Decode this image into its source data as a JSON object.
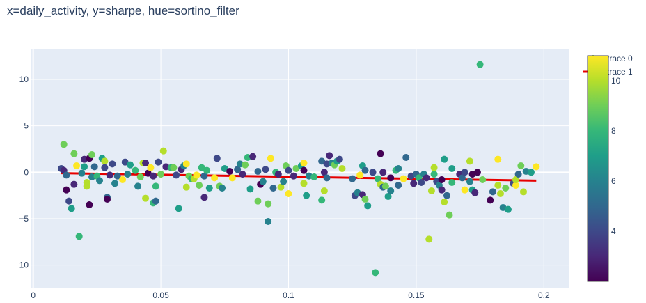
{
  "chart_data": {
    "type": "scatter",
    "title": "x=daily_activity, y=sharpe, hue=sortino_filter",
    "xlabel": "",
    "ylabel": "",
    "xlim": [
      -0.001,
      0.21
    ],
    "ylim": [
      -12.5,
      13.3
    ],
    "xticks": [
      0,
      0.05,
      0.1,
      0.15,
      0.2
    ],
    "xtick_labels": [
      "0",
      "0.05",
      "0.1",
      "0.15",
      "0.2"
    ],
    "yticks": [
      10,
      5,
      0,
      -5,
      -10
    ],
    "ytick_labels": [
      "10",
      "5",
      "0",
      "−5",
      "−10"
    ],
    "grid": true,
    "legend_position": "top-right",
    "series": [
      {
        "name": "trace 0",
        "mode": "markers",
        "colorscale": "viridis",
        "color_range": [
          2,
          11
        ],
        "points": [
          {
            "x": 0.011,
            "y": 0.4,
            "c": 4
          },
          {
            "x": 0.012,
            "y": 0.2,
            "c": 3
          },
          {
            "x": 0.012,
            "y": 3.0,
            "c": 9
          },
          {
            "x": 0.013,
            "y": -0.3,
            "c": 5
          },
          {
            "x": 0.013,
            "y": -1.9,
            "c": 2
          },
          {
            "x": 0.014,
            "y": -3.1,
            "c": 4
          },
          {
            "x": 0.015,
            "y": -3.9,
            "c": 7
          },
          {
            "x": 0.016,
            "y": 2.0,
            "c": 9
          },
          {
            "x": 0.016,
            "y": -1.3,
            "c": 3
          },
          {
            "x": 0.017,
            "y": 0.7,
            "c": 11
          },
          {
            "x": 0.018,
            "y": -6.9,
            "c": 8
          },
          {
            "x": 0.019,
            "y": -0.1,
            "c": 6
          },
          {
            "x": 0.02,
            "y": 1.4,
            "c": 3
          },
          {
            "x": 0.02,
            "y": 0.6,
            "c": 7
          },
          {
            "x": 0.021,
            "y": -1.1,
            "c": 10
          },
          {
            "x": 0.021,
            "y": -1.5,
            "c": 10
          },
          {
            "x": 0.022,
            "y": 1.5,
            "c": 2
          },
          {
            "x": 0.022,
            "y": -3.5,
            "c": 2
          },
          {
            "x": 0.023,
            "y": 1.9,
            "c": 9
          },
          {
            "x": 0.023,
            "y": -0.5,
            "c": 6
          },
          {
            "x": 0.024,
            "y": 0.6,
            "c": 5
          },
          {
            "x": 0.025,
            "y": -0.4,
            "c": 8
          },
          {
            "x": 0.026,
            "y": -0.9,
            "c": 6
          },
          {
            "x": 0.027,
            "y": 1.5,
            "c": 7
          },
          {
            "x": 0.028,
            "y": 1.2,
            "c": 10
          },
          {
            "x": 0.028,
            "y": 0.5,
            "c": 4
          },
          {
            "x": 0.029,
            "y": -2.7,
            "c": 5
          },
          {
            "x": 0.029,
            "y": -2.9,
            "c": 2
          },
          {
            "x": 0.03,
            "y": -0.3,
            "c": 3
          },
          {
            "x": 0.031,
            "y": 0.9,
            "c": 4
          },
          {
            "x": 0.032,
            "y": -1.2,
            "c": 6
          },
          {
            "x": 0.033,
            "y": -0.4,
            "c": 5
          },
          {
            "x": 0.035,
            "y": -0.8,
            "c": 11
          },
          {
            "x": 0.036,
            "y": 1.1,
            "c": 4
          },
          {
            "x": 0.037,
            "y": -0.2,
            "c": 6
          },
          {
            "x": 0.038,
            "y": 0.8,
            "c": 7
          },
          {
            "x": 0.04,
            "y": 0.2,
            "c": 8
          },
          {
            "x": 0.041,
            "y": -1.5,
            "c": 6
          },
          {
            "x": 0.042,
            "y": -0.5,
            "c": 9
          },
          {
            "x": 0.043,
            "y": 1.0,
            "c": 10
          },
          {
            "x": 0.044,
            "y": -2.8,
            "c": 10
          },
          {
            "x": 0.044,
            "y": 1.0,
            "c": 3
          },
          {
            "x": 0.045,
            "y": -0.1,
            "c": 2
          },
          {
            "x": 0.046,
            "y": 0.5,
            "c": 11
          },
          {
            "x": 0.047,
            "y": -3.3,
            "c": 8
          },
          {
            "x": 0.047,
            "y": -0.4,
            "c": 3
          },
          {
            "x": 0.048,
            "y": -1.5,
            "c": 8
          },
          {
            "x": 0.048,
            "y": -3.1,
            "c": 5
          },
          {
            "x": 0.049,
            "y": 1.1,
            "c": 4
          },
          {
            "x": 0.05,
            "y": -0.2,
            "c": 9
          },
          {
            "x": 0.051,
            "y": 2.3,
            "c": 10
          },
          {
            "x": 0.052,
            "y": 0.6,
            "c": 3
          },
          {
            "x": 0.054,
            "y": 0.5,
            "c": 8
          },
          {
            "x": 0.055,
            "y": 0.5,
            "c": 9
          },
          {
            "x": 0.056,
            "y": -0.3,
            "c": 4
          },
          {
            "x": 0.057,
            "y": -3.9,
            "c": 7
          },
          {
            "x": 0.058,
            "y": 0.3,
            "c": 3
          },
          {
            "x": 0.059,
            "y": 0.7,
            "c": 6
          },
          {
            "x": 0.06,
            "y": -1.6,
            "c": 10
          },
          {
            "x": 0.06,
            "y": 0.9,
            "c": 11
          },
          {
            "x": 0.061,
            "y": -0.4,
            "c": 9
          },
          {
            "x": 0.062,
            "y": -0.7,
            "c": 8
          },
          {
            "x": 0.063,
            "y": -0.7,
            "c": 10
          },
          {
            "x": 0.064,
            "y": -0.3,
            "c": 11
          },
          {
            "x": 0.065,
            "y": -1.4,
            "c": 9
          },
          {
            "x": 0.066,
            "y": 0.5,
            "c": 8
          },
          {
            "x": 0.067,
            "y": -2.7,
            "c": 3
          },
          {
            "x": 0.067,
            "y": -0.4,
            "c": 5
          },
          {
            "x": 0.068,
            "y": 0.2,
            "c": 8
          },
          {
            "x": 0.069,
            "y": -1.7,
            "c": 7
          },
          {
            "x": 0.071,
            "y": -0.6,
            "c": 11
          },
          {
            "x": 0.072,
            "y": 1.5,
            "c": 4
          },
          {
            "x": 0.073,
            "y": -1.5,
            "c": 9
          },
          {
            "x": 0.074,
            "y": -1.7,
            "c": 6
          },
          {
            "x": 0.075,
            "y": 0.4,
            "c": 7
          },
          {
            "x": 0.077,
            "y": 0.1,
            "c": 2
          },
          {
            "x": 0.078,
            "y": -0.6,
            "c": 11
          },
          {
            "x": 0.08,
            "y": 0.3,
            "c": 5
          },
          {
            "x": 0.081,
            "y": 0.9,
            "c": 6
          },
          {
            "x": 0.082,
            "y": -0.2,
            "c": 3
          },
          {
            "x": 0.083,
            "y": 0.8,
            "c": 9
          },
          {
            "x": 0.084,
            "y": 1.6,
            "c": 8
          },
          {
            "x": 0.085,
            "y": -1.8,
            "c": 7
          },
          {
            "x": 0.086,
            "y": 1.7,
            "c": 3
          },
          {
            "x": 0.088,
            "y": 0.1,
            "c": 5
          },
          {
            "x": 0.088,
            "y": -3.1,
            "c": 9
          },
          {
            "x": 0.089,
            "y": -1.3,
            "c": 2
          },
          {
            "x": 0.09,
            "y": -1.0,
            "c": 6
          },
          {
            "x": 0.091,
            "y": 0.3,
            "c": 4
          },
          {
            "x": 0.092,
            "y": -5.3,
            "c": 6
          },
          {
            "x": 0.092,
            "y": -3.4,
            "c": 9
          },
          {
            "x": 0.093,
            "y": 1.5,
            "c": 11
          },
          {
            "x": 0.094,
            "y": -1.7,
            "c": 5
          },
          {
            "x": 0.095,
            "y": 0.0,
            "c": 8
          },
          {
            "x": 0.096,
            "y": -0.2,
            "c": 3
          },
          {
            "x": 0.097,
            "y": -1.6,
            "c": 10
          },
          {
            "x": 0.098,
            "y": -1.0,
            "c": 6
          },
          {
            "x": 0.099,
            "y": 0.7,
            "c": 9
          },
          {
            "x": 0.1,
            "y": -2.3,
            "c": 11
          },
          {
            "x": 0.1,
            "y": 0.2,
            "c": 4
          },
          {
            "x": 0.102,
            "y": -0.4,
            "c": 3
          },
          {
            "x": 0.103,
            "y": 0.4,
            "c": 9
          },
          {
            "x": 0.105,
            "y": 0.7,
            "c": 7
          },
          {
            "x": 0.106,
            "y": 0.2,
            "c": 2
          },
          {
            "x": 0.106,
            "y": 1.0,
            "c": 11
          },
          {
            "x": 0.106,
            "y": -1.2,
            "c": 10
          },
          {
            "x": 0.107,
            "y": -2.5,
            "c": 7
          },
          {
            "x": 0.108,
            "y": -0.4,
            "c": 6
          },
          {
            "x": 0.11,
            "y": -0.5,
            "c": 8
          },
          {
            "x": 0.113,
            "y": 1.2,
            "c": 5
          },
          {
            "x": 0.113,
            "y": -3.0,
            "c": 8
          },
          {
            "x": 0.114,
            "y": -2.0,
            "c": 10
          },
          {
            "x": 0.114,
            "y": 0.0,
            "c": 3
          },
          {
            "x": 0.115,
            "y": -0.6,
            "c": 5
          },
          {
            "x": 0.115,
            "y": 0.9,
            "c": 4
          },
          {
            "x": 0.116,
            "y": 1.8,
            "c": 3
          },
          {
            "x": 0.117,
            "y": 1.0,
            "c": 6
          },
          {
            "x": 0.118,
            "y": 0.8,
            "c": 9
          },
          {
            "x": 0.119,
            "y": 1.2,
            "c": 7
          },
          {
            "x": 0.12,
            "y": 1.4,
            "c": 4
          },
          {
            "x": 0.121,
            "y": 0.4,
            "c": 10
          },
          {
            "x": 0.125,
            "y": -0.7,
            "c": 5
          },
          {
            "x": 0.126,
            "y": -2.5,
            "c": 4
          },
          {
            "x": 0.127,
            "y": -2.2,
            "c": 6
          },
          {
            "x": 0.128,
            "y": -0.3,
            "c": 11
          },
          {
            "x": 0.129,
            "y": 0.7,
            "c": 7
          },
          {
            "x": 0.129,
            "y": -2.4,
            "c": 3
          },
          {
            "x": 0.13,
            "y": 0.2,
            "c": 5
          },
          {
            "x": 0.13,
            "y": -2.9,
            "c": 9
          },
          {
            "x": 0.131,
            "y": -3.6,
            "c": 7
          },
          {
            "x": 0.133,
            "y": 0.0,
            "c": 4
          },
          {
            "x": 0.134,
            "y": -10.8,
            "c": 8
          },
          {
            "x": 0.135,
            "y": -0.7,
            "c": 8
          },
          {
            "x": 0.136,
            "y": -1.3,
            "c": 10
          },
          {
            "x": 0.136,
            "y": 2.0,
            "c": 2
          },
          {
            "x": 0.137,
            "y": 0.0,
            "c": 3
          },
          {
            "x": 0.137,
            "y": -1.6,
            "c": 5
          },
          {
            "x": 0.138,
            "y": -1.5,
            "c": 9
          },
          {
            "x": 0.139,
            "y": -2.6,
            "c": 7
          },
          {
            "x": 0.14,
            "y": -2.0,
            "c": 6
          },
          {
            "x": 0.14,
            "y": -0.6,
            "c": 2
          },
          {
            "x": 0.142,
            "y": 0.2,
            "c": 8
          },
          {
            "x": 0.143,
            "y": 0.4,
            "c": 6
          },
          {
            "x": 0.143,
            "y": -1.4,
            "c": 5
          },
          {
            "x": 0.145,
            "y": -0.7,
            "c": 11
          },
          {
            "x": 0.146,
            "y": 1.6,
            "c": 5
          },
          {
            "x": 0.148,
            "y": -0.4,
            "c": 4
          },
          {
            "x": 0.149,
            "y": -1.2,
            "c": 3
          },
          {
            "x": 0.15,
            "y": -0.2,
            "c": 5
          },
          {
            "x": 0.151,
            "y": -0.6,
            "c": 8
          },
          {
            "x": 0.152,
            "y": -1.1,
            "c": 4
          },
          {
            "x": 0.153,
            "y": -0.2,
            "c": 6
          },
          {
            "x": 0.154,
            "y": -0.6,
            "c": 3
          },
          {
            "x": 0.155,
            "y": -7.2,
            "c": 10
          },
          {
            "x": 0.156,
            "y": -2.0,
            "c": 10
          },
          {
            "x": 0.157,
            "y": 0.5,
            "c": 10
          },
          {
            "x": 0.157,
            "y": -0.2,
            "c": 8
          },
          {
            "x": 0.158,
            "y": -1.0,
            "c": 4
          },
          {
            "x": 0.159,
            "y": -1.4,
            "c": 6
          },
          {
            "x": 0.16,
            "y": -0.8,
            "c": 2
          },
          {
            "x": 0.16,
            "y": -1.9,
            "c": 3
          },
          {
            "x": 0.161,
            "y": -3.2,
            "c": 10
          },
          {
            "x": 0.161,
            "y": 1.4,
            "c": 7
          },
          {
            "x": 0.162,
            "y": -2.5,
            "c": 5
          },
          {
            "x": 0.163,
            "y": -4.6,
            "c": 9
          },
          {
            "x": 0.164,
            "y": 0.4,
            "c": 7
          },
          {
            "x": 0.164,
            "y": -1.1,
            "c": 8
          },
          {
            "x": 0.167,
            "y": -0.2,
            "c": 3
          },
          {
            "x": 0.168,
            "y": -0.6,
            "c": 5
          },
          {
            "x": 0.169,
            "y": 0.0,
            "c": 4
          },
          {
            "x": 0.169,
            "y": -1.9,
            "c": 11
          },
          {
            "x": 0.171,
            "y": 1.2,
            "c": 10
          },
          {
            "x": 0.171,
            "y": -1.0,
            "c": 6
          },
          {
            "x": 0.172,
            "y": -1.9,
            "c": 7
          },
          {
            "x": 0.172,
            "y": -0.2,
            "c": 2
          },
          {
            "x": 0.173,
            "y": -2.2,
            "c": 3
          },
          {
            "x": 0.174,
            "y": 0.0,
            "c": 2
          },
          {
            "x": 0.175,
            "y": 11.6,
            "c": 8
          },
          {
            "x": 0.176,
            "y": -0.8,
            "c": 9
          },
          {
            "x": 0.179,
            "y": -3.0,
            "c": 2
          },
          {
            "x": 0.18,
            "y": -2.1,
            "c": 5
          },
          {
            "x": 0.182,
            "y": -1.4,
            "c": 10
          },
          {
            "x": 0.182,
            "y": 1.4,
            "c": 11
          },
          {
            "x": 0.183,
            "y": -2.3,
            "c": 10
          },
          {
            "x": 0.184,
            "y": -3.8,
            "c": 6
          },
          {
            "x": 0.185,
            "y": -1.7,
            "c": 9
          },
          {
            "x": 0.186,
            "y": -4.0,
            "c": 7
          },
          {
            "x": 0.188,
            "y": -1.2,
            "c": 4
          },
          {
            "x": 0.189,
            "y": -1.4,
            "c": 11
          },
          {
            "x": 0.189,
            "y": -0.8,
            "c": 10
          },
          {
            "x": 0.19,
            "y": -0.2,
            "c": 5
          },
          {
            "x": 0.191,
            "y": 0.7,
            "c": 9
          },
          {
            "x": 0.192,
            "y": -2.1,
            "c": 10
          },
          {
            "x": 0.193,
            "y": 0.1,
            "c": 6
          },
          {
            "x": 0.195,
            "y": 0.0,
            "c": 7
          },
          {
            "x": 0.197,
            "y": 0.6,
            "c": 11
          }
        ]
      },
      {
        "name": "trace 1",
        "mode": "lines",
        "color": "#e60000",
        "x": [
          0.011,
          0.197
        ],
        "y": [
          -0.1,
          -0.9
        ]
      }
    ],
    "colorbar": {
      "colorscale": "viridis",
      "range": [
        2,
        11
      ],
      "ticks": [
        4,
        6,
        8,
        10
      ],
      "tick_labels": [
        "4",
        "6",
        "8",
        "10"
      ]
    },
    "colors": {
      "plot_bg": "#e5ecf6",
      "grid": "#ffffff",
      "text": "#2a3f5f",
      "line": "#e60000"
    }
  }
}
